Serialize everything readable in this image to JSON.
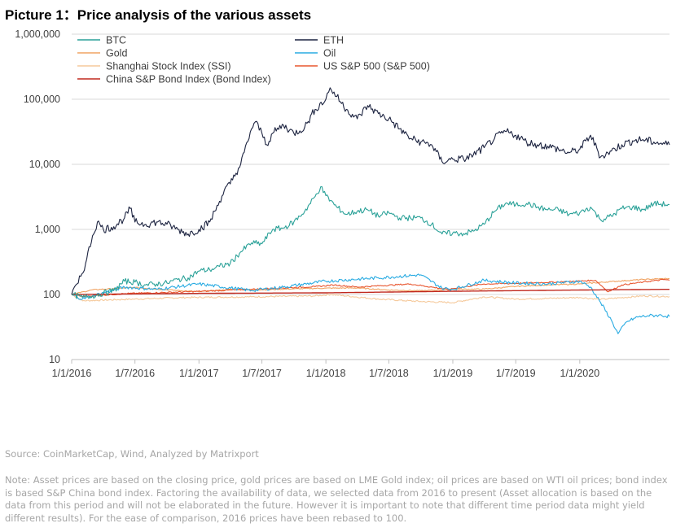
{
  "page": {
    "title": "Picture 1：Price analysis of the various assets",
    "source": "Source: CoinMarketCap, Wind, Analyzed by Matrixport",
    "note": "Note: Asset prices are based on the closing price, gold prices are based on LME Gold index; oil prices are based on WTI oil prices; bond index is based S&P China bond index. Factoring the availability of data, we selected data from 2016 to present (Asset allocation is based on the data from this period and will not be elaborated in the future. However it is important to note that different time period data might yield different results). For the ease of comparison, 2016 prices have been rebased to 100."
  },
  "chart_data": {
    "type": "line",
    "title": "Picture 1：Price analysis of the various assets",
    "y_scale": "log",
    "ylim": [
      10,
      1000000
    ],
    "yticks": [
      10,
      100,
      1000,
      10000,
      100000,
      1000000
    ],
    "ytick_labels": [
      "10",
      "100",
      "1,000",
      "10,000",
      "100,000",
      "1,000,000"
    ],
    "xlim": [
      "2016-01-01",
      "2020-09-15"
    ],
    "xticks": [
      "2016-01-01",
      "2016-07-01",
      "2017-01-01",
      "2017-07-01",
      "2018-01-01",
      "2018-07-01",
      "2019-01-01",
      "2019-07-01",
      "2020-01-01"
    ],
    "xtick_labels": [
      "1/1/2016",
      "1/7/2016",
      "1/1/2017",
      "1/7/2017",
      "1/1/2018",
      "1/7/2018",
      "1/1/2019",
      "1/7/2019",
      "1/1/2020"
    ],
    "grid": "horizontal",
    "legend_position": "top",
    "series": [
      {
        "name": "BTC",
        "color": "#2aa198",
        "points": [
          [
            "2016-01-01",
            100
          ],
          [
            "2016-02-01",
            90
          ],
          [
            "2016-03-01",
            95
          ],
          [
            "2016-04-01",
            105
          ],
          [
            "2016-05-01",
            115
          ],
          [
            "2016-06-01",
            160
          ],
          [
            "2016-07-01",
            155
          ],
          [
            "2016-08-01",
            140
          ],
          [
            "2016-09-01",
            145
          ],
          [
            "2016-10-01",
            150
          ],
          [
            "2016-11-01",
            170
          ],
          [
            "2016-12-01",
            180
          ],
          [
            "2017-01-01",
            230
          ],
          [
            "2017-02-01",
            240
          ],
          [
            "2017-03-01",
            270
          ],
          [
            "2017-04-01",
            300
          ],
          [
            "2017-05-01",
            450
          ],
          [
            "2017-06-01",
            620
          ],
          [
            "2017-07-01",
            600
          ],
          [
            "2017-08-01",
            1000
          ],
          [
            "2017-09-01",
            1050
          ],
          [
            "2017-10-01",
            1300
          ],
          [
            "2017-11-01",
            1900
          ],
          [
            "2017-12-01",
            3200
          ],
          [
            "2017-12-17",
            4500
          ],
          [
            "2018-01-01",
            3300
          ],
          [
            "2018-02-01",
            2200
          ],
          [
            "2018-03-01",
            1700
          ],
          [
            "2018-04-01",
            1900
          ],
          [
            "2018-05-01",
            2000
          ],
          [
            "2018-06-01",
            1600
          ],
          [
            "2018-07-01",
            1800
          ],
          [
            "2018-08-01",
            1500
          ],
          [
            "2018-09-01",
            1500
          ],
          [
            "2018-10-01",
            1500
          ],
          [
            "2018-11-01",
            1200
          ],
          [
            "2018-12-01",
            850
          ],
          [
            "2019-01-01",
            880
          ],
          [
            "2019-02-01",
            860
          ],
          [
            "2019-03-01",
            940
          ],
          [
            "2019-04-01",
            1200
          ],
          [
            "2019-05-01",
            1900
          ],
          [
            "2019-06-01",
            2500
          ],
          [
            "2019-07-01",
            2400
          ],
          [
            "2019-08-01",
            2500
          ],
          [
            "2019-09-01",
            2200
          ],
          [
            "2019-10-01",
            2000
          ],
          [
            "2019-11-01",
            2000
          ],
          [
            "2019-12-01",
            1700
          ],
          [
            "2020-01-01",
            1800
          ],
          [
            "2020-02-01",
            2200
          ],
          [
            "2020-03-01",
            1400
          ],
          [
            "2020-04-01",
            1600
          ],
          [
            "2020-05-01",
            2100
          ],
          [
            "2020-06-01",
            2200
          ],
          [
            "2020-07-01",
            2000
          ],
          [
            "2020-08-01",
            2500
          ],
          [
            "2020-09-15",
            2400
          ]
        ]
      },
      {
        "name": "ETH",
        "color": "#1c2340",
        "points": [
          [
            "2016-01-01",
            100
          ],
          [
            "2016-01-20",
            150
          ],
          [
            "2016-02-10",
            300
          ],
          [
            "2016-03-01",
            800
          ],
          [
            "2016-03-15",
            1300
          ],
          [
            "2016-04-01",
            1000
          ],
          [
            "2016-05-01",
            1100
          ],
          [
            "2016-06-01",
            1500
          ],
          [
            "2016-06-17",
            2100
          ],
          [
            "2016-07-01",
            1300
          ],
          [
            "2016-08-01",
            1200
          ],
          [
            "2016-09-01",
            1300
          ],
          [
            "2016-10-01",
            1200
          ],
          [
            "2016-11-01",
            1000
          ],
          [
            "2016-12-01",
            850
          ],
          [
            "2017-01-01",
            1000
          ],
          [
            "2017-02-01",
            1300
          ],
          [
            "2017-03-01",
            2700
          ],
          [
            "2017-03-15",
            4000
          ],
          [
            "2017-04-01",
            5000
          ],
          [
            "2017-05-01",
            10000
          ],
          [
            "2017-06-01",
            35000
          ],
          [
            "2017-06-12",
            45000
          ],
          [
            "2017-07-01",
            30000
          ],
          [
            "2017-07-15",
            20000
          ],
          [
            "2017-08-01",
            30000
          ],
          [
            "2017-09-01",
            40000
          ],
          [
            "2017-10-01",
            30000
          ],
          [
            "2017-11-01",
            37000
          ],
          [
            "2017-12-01",
            70000
          ],
          [
            "2018-01-01",
            100000
          ],
          [
            "2018-01-13",
            150000
          ],
          [
            "2018-02-01",
            110000
          ],
          [
            "2018-03-01",
            70000
          ],
          [
            "2018-04-01",
            50000
          ],
          [
            "2018-05-01",
            80000
          ],
          [
            "2018-06-01",
            60000
          ],
          [
            "2018-07-01",
            50000
          ],
          [
            "2018-08-01",
            35000
          ],
          [
            "2018-09-01",
            25000
          ],
          [
            "2018-10-01",
            22000
          ],
          [
            "2018-11-01",
            20000
          ],
          [
            "2018-12-01",
            11000
          ],
          [
            "2019-01-01",
            12000
          ],
          [
            "2019-02-01",
            12000
          ],
          [
            "2019-03-01",
            14000
          ],
          [
            "2019-04-01",
            18000
          ],
          [
            "2019-05-01",
            25000
          ],
          [
            "2019-06-01",
            32000
          ],
          [
            "2019-07-01",
            28000
          ],
          [
            "2019-08-01",
            22000
          ],
          [
            "2019-09-01",
            20000
          ],
          [
            "2019-10-01",
            19000
          ],
          [
            "2019-11-01",
            17000
          ],
          [
            "2019-12-01",
            15000
          ],
          [
            "2020-01-01",
            17000
          ],
          [
            "2020-02-01",
            28000
          ],
          [
            "2020-03-01",
            13000
          ],
          [
            "2020-04-01",
            16000
          ],
          [
            "2020-05-01",
            20000
          ],
          [
            "2020-06-01",
            23000
          ],
          [
            "2020-07-01",
            24000
          ],
          [
            "2020-08-01",
            22000
          ],
          [
            "2020-09-15",
            20000
          ]
        ]
      },
      {
        "name": "Gold",
        "color": "#f0a362",
        "points": [
          [
            "2016-01-01",
            100
          ],
          [
            "2016-03-01",
            118
          ],
          [
            "2016-07-01",
            128
          ],
          [
            "2016-10-01",
            118
          ],
          [
            "2017-01-01",
            110
          ],
          [
            "2017-04-01",
            120
          ],
          [
            "2017-07-01",
            118
          ],
          [
            "2017-10-01",
            122
          ],
          [
            "2018-01-01",
            125
          ],
          [
            "2018-04-01",
            126
          ],
          [
            "2018-07-01",
            117
          ],
          [
            "2018-10-01",
            114
          ],
          [
            "2019-01-01",
            120
          ],
          [
            "2019-04-01",
            121
          ],
          [
            "2019-07-01",
            133
          ],
          [
            "2019-10-01",
            140
          ],
          [
            "2020-01-01",
            145
          ],
          [
            "2020-04-01",
            158
          ],
          [
            "2020-07-01",
            170
          ],
          [
            "2020-09-15",
            176
          ]
        ]
      },
      {
        "name": "Oil",
        "color": "#29abe2",
        "points": [
          [
            "2016-01-01",
            100
          ],
          [
            "2016-02-01",
            85
          ],
          [
            "2016-03-01",
            95
          ],
          [
            "2016-06-01",
            130
          ],
          [
            "2016-09-01",
            120
          ],
          [
            "2017-01-01",
            145
          ],
          [
            "2017-06-01",
            115
          ],
          [
            "2017-09-01",
            130
          ],
          [
            "2018-01-01",
            160
          ],
          [
            "2018-06-01",
            180
          ],
          [
            "2018-10-01",
            200
          ],
          [
            "2018-12-01",
            125
          ],
          [
            "2019-01-01",
            120
          ],
          [
            "2019-04-01",
            165
          ],
          [
            "2019-07-01",
            150
          ],
          [
            "2019-10-01",
            145
          ],
          [
            "2020-01-01",
            160
          ],
          [
            "2020-02-01",
            130
          ],
          [
            "2020-03-01",
            75
          ],
          [
            "2020-04-01",
            40
          ],
          [
            "2020-04-20",
            25
          ],
          [
            "2020-05-15",
            38
          ],
          [
            "2020-06-15",
            45
          ],
          [
            "2020-07-15",
            47
          ],
          [
            "2020-08-15",
            48
          ],
          [
            "2020-09-15",
            46
          ]
        ]
      },
      {
        "name": "Shanghai Stock Index (SSI)",
        "color": "#f5c99b",
        "points": [
          [
            "2016-01-01",
            100
          ],
          [
            "2016-02-01",
            80
          ],
          [
            "2016-07-01",
            85
          ],
          [
            "2016-12-01",
            90
          ],
          [
            "2017-06-01",
            92
          ],
          [
            "2017-12-01",
            95
          ],
          [
            "2018-01-15",
            100
          ],
          [
            "2018-06-01",
            85
          ],
          [
            "2018-10-01",
            78
          ],
          [
            "2019-01-01",
            75
          ],
          [
            "2019-04-01",
            92
          ],
          [
            "2019-07-01",
            85
          ],
          [
            "2019-10-01",
            87
          ],
          [
            "2020-01-01",
            90
          ],
          [
            "2020-03-01",
            84
          ],
          [
            "2020-07-01",
            95
          ],
          [
            "2020-09-15",
            93
          ]
        ]
      },
      {
        "name": "US S&P 500 (S&P 500)",
        "color": "#e8562f",
        "points": [
          [
            "2016-01-01",
            100
          ],
          [
            "2016-02-01",
            93
          ],
          [
            "2016-06-01",
            103
          ],
          [
            "2016-12-01",
            110
          ],
          [
            "2017-06-01",
            120
          ],
          [
            "2017-12-01",
            132
          ],
          [
            "2018-01-26",
            140
          ],
          [
            "2018-04-01",
            130
          ],
          [
            "2018-09-01",
            145
          ],
          [
            "2018-12-24",
            118
          ],
          [
            "2019-01-01",
            123
          ],
          [
            "2019-04-01",
            145
          ],
          [
            "2019-07-01",
            148
          ],
          [
            "2019-12-01",
            158
          ],
          [
            "2020-02-15",
            165
          ],
          [
            "2020-03-23",
            110
          ],
          [
            "2020-05-01",
            140
          ],
          [
            "2020-07-01",
            155
          ],
          [
            "2020-09-01",
            170
          ],
          [
            "2020-09-15",
            165
          ]
        ]
      },
      {
        "name": "China S&P Bond Index (Bond Index)",
        "color": "#c0281e",
        "points": [
          [
            "2016-01-01",
            100
          ],
          [
            "2017-01-01",
            104
          ],
          [
            "2018-01-01",
            106
          ],
          [
            "2019-01-01",
            112
          ],
          [
            "2020-01-01",
            117
          ],
          [
            "2020-09-15",
            120
          ]
        ]
      }
    ]
  }
}
